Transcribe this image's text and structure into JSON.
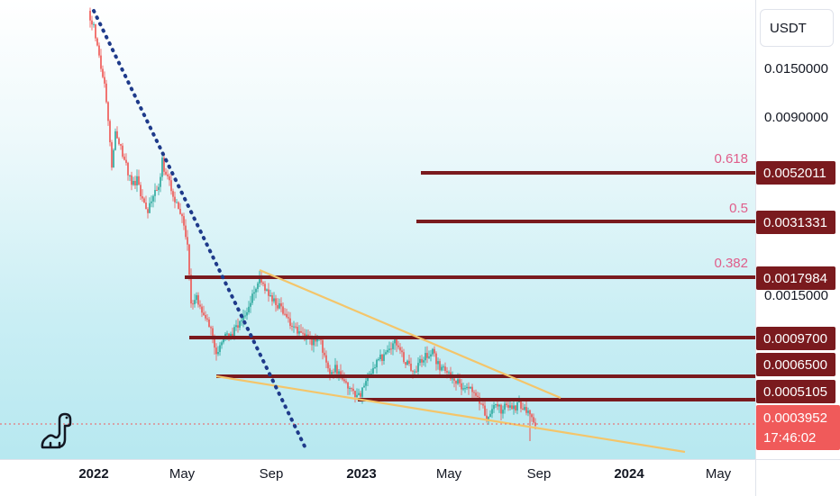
{
  "currency": "USDT",
  "price_axis_labels": [
    "0.0150000",
    "0.0090000",
    "0.0015000"
  ],
  "levels": [
    {
      "value": "0.0052011",
      "fib": "0.618"
    },
    {
      "value": "0.0031331",
      "fib": "0.5"
    },
    {
      "value": "0.0017984",
      "fib": "0.382"
    },
    {
      "value": "0.0009700",
      "fib": ""
    },
    {
      "value": "0.0006500",
      "fib": ""
    },
    {
      "value": "0.0005105",
      "fib": ""
    }
  ],
  "current_price": "0.0003952",
  "countdown": "17:46:02",
  "time_labels": [
    {
      "text": "2022",
      "bold": true
    },
    {
      "text": "May",
      "bold": false
    },
    {
      "text": "Sep",
      "bold": false
    },
    {
      "text": "2023",
      "bold": true
    },
    {
      "text": "May",
      "bold": false
    },
    {
      "text": "Sep",
      "bold": false
    },
    {
      "text": "2024",
      "bold": true
    },
    {
      "text": "May",
      "bold": false
    }
  ],
  "colors": {
    "level_line": "#7a1a1e",
    "trendline": "#f4c56a",
    "dotted_trend": "#1e3a8a",
    "candle_up": "#26a69a",
    "candle_down": "#ef5350",
    "current_tag": "#f05a5a",
    "fib_text": "#e05d8a"
  },
  "chart_data": {
    "type": "candlestick",
    "x": [
      "2022-01",
      "2022-02",
      "2022-03",
      "2022-04",
      "2022-05",
      "2022-06",
      "2022-07",
      "2022-08",
      "2022-09",
      "2022-10",
      "2022-11",
      "2022-12",
      "2023-01",
      "2023-02",
      "2023-03",
      "2023-04",
      "2023-05",
      "2023-06",
      "2023-07",
      "2023-08"
    ],
    "price": [
      0.02,
      0.012,
      0.0065,
      0.0055,
      0.0018,
      0.00085,
      0.00095,
      0.0019,
      0.0012,
      0.00095,
      0.00065,
      0.00058,
      0.00052,
      0.00078,
      0.00085,
      0.00072,
      0.00058,
      0.00048,
      0.00044,
      0.00042
    ],
    "horizontal_levels": [
      0.0052011,
      0.0031331,
      0.0017984,
      0.00097,
      0.00065,
      0.0005105
    ],
    "current": 0.0003952,
    "yscale": "log"
  }
}
